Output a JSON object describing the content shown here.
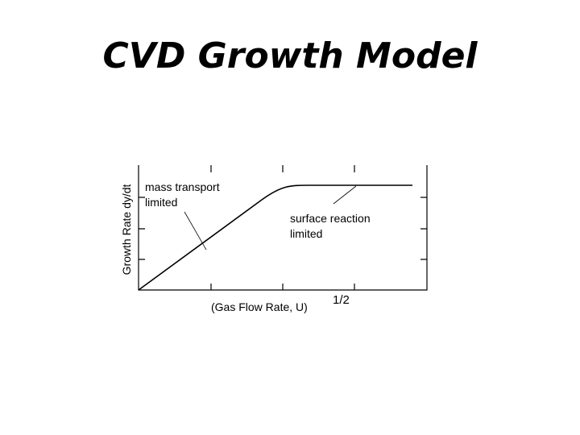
{
  "title": "CVD Growth Model",
  "diagram": {
    "y_axis_label": "Growth Rate dy/dt",
    "x_axis_label": "(Gas Flow Rate,  U)",
    "x_axis_exponent": "1/2",
    "annotations": [
      {
        "lines": [
          "mass transport",
          "limited"
        ]
      },
      {
        "lines": [
          "surface reaction",
          "limited"
        ]
      }
    ]
  }
}
